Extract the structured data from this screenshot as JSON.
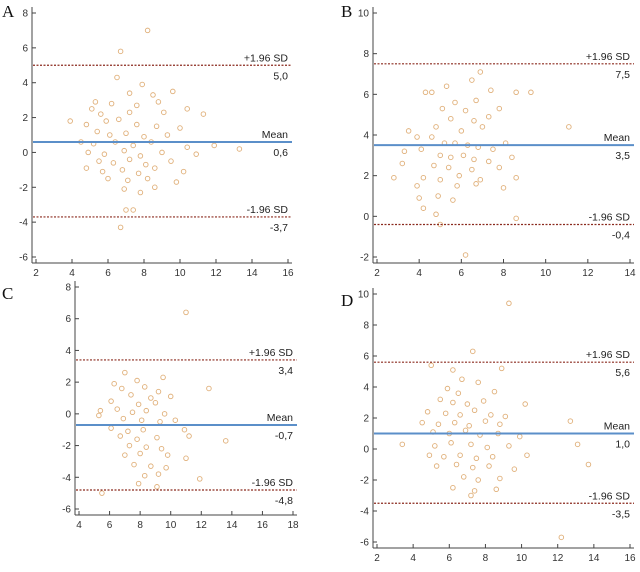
{
  "colors": {
    "mean_line": "#5b8fc9",
    "sd_line": "#8b2a1e",
    "point": "#e0b07a",
    "axis": "#444444",
    "text": "#222222"
  },
  "chart_data": [
    {
      "panel": "A",
      "type": "scatter",
      "xlim": [
        2,
        16
      ],
      "ylim": [
        -6,
        8
      ],
      "xticks": [
        2,
        4,
        6,
        8,
        10,
        12,
        14,
        16
      ],
      "yticks": [
        -6,
        -4,
        -2,
        0,
        2,
        4,
        6,
        8
      ],
      "reference_lines": [
        {
          "kind": "upper",
          "value": 5.0,
          "label": "+1.96 SD",
          "value_label": "5,0"
        },
        {
          "kind": "mean",
          "value": 0.6,
          "label": "Mean",
          "value_label": "0,6"
        },
        {
          "kind": "lower",
          "value": -3.7,
          "label": "-1.96 SD",
          "value_label": "-3,7"
        }
      ],
      "points": [
        [
          8.2,
          7.0
        ],
        [
          6.7,
          5.8
        ],
        [
          6.5,
          4.3
        ],
        [
          7.9,
          3.9
        ],
        [
          7.2,
          3.4
        ],
        [
          8.5,
          3.3
        ],
        [
          9.6,
          3.5
        ],
        [
          5.3,
          2.9
        ],
        [
          6.2,
          2.8
        ],
        [
          7.6,
          2.7
        ],
        [
          8.8,
          2.9
        ],
        [
          5.1,
          2.5
        ],
        [
          5.6,
          2.2
        ],
        [
          7.2,
          2.3
        ],
        [
          9.1,
          2.3
        ],
        [
          10.4,
          2.5
        ],
        [
          11.3,
          2.2
        ],
        [
          3.9,
          1.8
        ],
        [
          4.8,
          1.6
        ],
        [
          5.9,
          1.8
        ],
        [
          6.6,
          1.9
        ],
        [
          7.6,
          1.6
        ],
        [
          8.7,
          1.5
        ],
        [
          10.0,
          1.4
        ],
        [
          5.4,
          1.2
        ],
        [
          6.1,
          1.0
        ],
        [
          7.0,
          1.1
        ],
        [
          8.0,
          0.9
        ],
        [
          9.3,
          1.0
        ],
        [
          4.5,
          0.6
        ],
        [
          5.2,
          0.5
        ],
        [
          6.4,
          0.6
        ],
        [
          7.4,
          0.4
        ],
        [
          8.4,
          0.6
        ],
        [
          10.4,
          0.3
        ],
        [
          11.9,
          0.4
        ],
        [
          13.3,
          0.2
        ],
        [
          4.9,
          0.0
        ],
        [
          5.8,
          -0.1
        ],
        [
          6.9,
          0.1
        ],
        [
          7.8,
          -0.2
        ],
        [
          9.0,
          0.0
        ],
        [
          10.9,
          -0.1
        ],
        [
          5.5,
          -0.5
        ],
        [
          6.3,
          -0.6
        ],
        [
          7.2,
          -0.4
        ],
        [
          8.1,
          -0.7
        ],
        [
          9.5,
          -0.5
        ],
        [
          4.8,
          -0.9
        ],
        [
          5.7,
          -1.1
        ],
        [
          6.8,
          -1.0
        ],
        [
          7.7,
          -1.2
        ],
        [
          8.6,
          -0.9
        ],
        [
          10.2,
          -1.1
        ],
        [
          6.0,
          -1.5
        ],
        [
          7.1,
          -1.6
        ],
        [
          8.2,
          -1.5
        ],
        [
          9.8,
          -1.7
        ],
        [
          6.9,
          -2.1
        ],
        [
          7.8,
          -2.3
        ],
        [
          8.6,
          -2.0
        ],
        [
          7.0,
          -3.3
        ],
        [
          7.4,
          -3.3
        ],
        [
          6.7,
          -4.3
        ]
      ]
    },
    {
      "panel": "B",
      "type": "scatter",
      "xlim": [
        2,
        14
      ],
      "ylim": [
        -2,
        10
      ],
      "xticks": [
        2,
        4,
        6,
        8,
        10,
        12,
        14
      ],
      "yticks": [
        -2,
        0,
        2,
        4,
        6,
        8,
        10
      ],
      "reference_lines": [
        {
          "kind": "upper",
          "value": 7.5,
          "label": "+1.96 SD",
          "value_label": "7,5"
        },
        {
          "kind": "mean",
          "value": 3.5,
          "label": "Mean",
          "value_label": "3,5"
        },
        {
          "kind": "lower",
          "value": -0.4,
          "label": "-1.96 SD",
          "value_label": "-0,4"
        }
      ],
      "points": [
        [
          6.9,
          7.1
        ],
        [
          6.5,
          6.7
        ],
        [
          5.3,
          6.4
        ],
        [
          4.3,
          6.1
        ],
        [
          4.6,
          6.1
        ],
        [
          7.4,
          6.2
        ],
        [
          8.6,
          6.1
        ],
        [
          9.3,
          6.1
        ],
        [
          5.7,
          5.6
        ],
        [
          6.7,
          5.7
        ],
        [
          5.1,
          5.3
        ],
        [
          6.2,
          5.2
        ],
        [
          7.8,
          5.3
        ],
        [
          5.5,
          4.8
        ],
        [
          6.6,
          4.7
        ],
        [
          7.3,
          4.9
        ],
        [
          4.8,
          4.4
        ],
        [
          6.0,
          4.2
        ],
        [
          7.0,
          4.4
        ],
        [
          11.1,
          4.4
        ],
        [
          3.5,
          4.2
        ],
        [
          3.9,
          3.9
        ],
        [
          4.6,
          3.9
        ],
        [
          5.2,
          3.6
        ],
        [
          5.7,
          3.6
        ],
        [
          6.3,
          3.5
        ],
        [
          6.8,
          3.4
        ],
        [
          7.5,
          3.3
        ],
        [
          8.1,
          3.6
        ],
        [
          3.3,
          3.2
        ],
        [
          4.1,
          3.3
        ],
        [
          5.0,
          3.0
        ],
        [
          5.5,
          2.9
        ],
        [
          6.1,
          3.0
        ],
        [
          6.6,
          2.8
        ],
        [
          7.3,
          2.7
        ],
        [
          8.4,
          2.9
        ],
        [
          3.2,
          2.6
        ],
        [
          4.7,
          2.5
        ],
        [
          5.4,
          2.4
        ],
        [
          6.5,
          2.3
        ],
        [
          7.8,
          2.4
        ],
        [
          2.8,
          1.9
        ],
        [
          4.2,
          1.9
        ],
        [
          5.0,
          1.8
        ],
        [
          5.9,
          2.0
        ],
        [
          6.9,
          1.8
        ],
        [
          8.6,
          1.9
        ],
        [
          3.9,
          1.5
        ],
        [
          5.8,
          1.5
        ],
        [
          6.7,
          1.6
        ],
        [
          8.0,
          1.4
        ],
        [
          4.0,
          0.9
        ],
        [
          4.9,
          1.0
        ],
        [
          5.6,
          0.8
        ],
        [
          4.2,
          0.4
        ],
        [
          4.8,
          0.1
        ],
        [
          8.6,
          -0.1
        ],
        [
          5.0,
          -0.4
        ],
        [
          6.2,
          -1.9
        ]
      ]
    },
    {
      "panel": "C",
      "type": "scatter",
      "xlim": [
        4,
        18
      ],
      "ylim": [
        -6,
        8
      ],
      "xticks": [
        4,
        6,
        8,
        10,
        12,
        14,
        16,
        18
      ],
      "yticks": [
        -6,
        -4,
        -2,
        0,
        2,
        4,
        6,
        8
      ],
      "reference_lines": [
        {
          "kind": "upper",
          "value": 3.4,
          "label": "+1.96 SD",
          "value_label": "3,4"
        },
        {
          "kind": "mean",
          "value": -0.7,
          "label": "Mean",
          "value_label": "-0,7"
        },
        {
          "kind": "lower",
          "value": -4.8,
          "label": "-1.96 SD",
          "value_label": "-4,8"
        }
      ],
      "points": [
        [
          11.0,
          6.4
        ],
        [
          7.0,
          2.6
        ],
        [
          9.5,
          2.3
        ],
        [
          7.8,
          2.1
        ],
        [
          6.3,
          1.9
        ],
        [
          6.8,
          1.6
        ],
        [
          8.3,
          1.7
        ],
        [
          9.2,
          1.4
        ],
        [
          12.5,
          1.6
        ],
        [
          7.4,
          1.2
        ],
        [
          8.7,
          1.0
        ],
        [
          10.0,
          1.1
        ],
        [
          6.1,
          0.8
        ],
        [
          7.9,
          0.6
        ],
        [
          9.0,
          0.7
        ],
        [
          5.4,
          0.2
        ],
        [
          6.5,
          0.3
        ],
        [
          7.5,
          0.1
        ],
        [
          8.4,
          0.2
        ],
        [
          9.6,
          0.0
        ],
        [
          5.3,
          -0.1
        ],
        [
          6.9,
          -0.3
        ],
        [
          8.1,
          -0.4
        ],
        [
          9.3,
          -0.5
        ],
        [
          10.3,
          -0.4
        ],
        [
          6.1,
          -0.9
        ],
        [
          7.2,
          -1.1
        ],
        [
          8.2,
          -1.0
        ],
        [
          10.9,
          -1.0
        ],
        [
          6.7,
          -1.4
        ],
        [
          7.8,
          -1.6
        ],
        [
          9.1,
          -1.5
        ],
        [
          11.2,
          -1.4
        ],
        [
          13.6,
          -1.7
        ],
        [
          7.3,
          -2.0
        ],
        [
          8.4,
          -2.1
        ],
        [
          9.4,
          -2.2
        ],
        [
          7.0,
          -2.6
        ],
        [
          8.0,
          -2.5
        ],
        [
          9.8,
          -2.6
        ],
        [
          11.0,
          -2.8
        ],
        [
          7.6,
          -3.2
        ],
        [
          8.7,
          -3.3
        ],
        [
          9.7,
          -3.4
        ],
        [
          8.3,
          -3.9
        ],
        [
          9.2,
          -3.8
        ],
        [
          11.9,
          -4.1
        ],
        [
          7.9,
          -4.4
        ],
        [
          9.1,
          -4.6
        ],
        [
          5.5,
          -5.0
        ]
      ]
    },
    {
      "panel": "D",
      "type": "scatter",
      "xlim": [
        2,
        16
      ],
      "ylim": [
        -6,
        10
      ],
      "xticks": [
        2,
        4,
        6,
        8,
        10,
        12,
        14,
        16
      ],
      "yticks": [
        -6,
        -4,
        -2,
        0,
        2,
        4,
        6,
        8,
        10
      ],
      "reference_lines": [
        {
          "kind": "upper",
          "value": 5.6,
          "label": "+1.96 SD",
          "value_label": "5,6"
        },
        {
          "kind": "mean",
          "value": 1.0,
          "label": "Mean",
          "value_label": "1,0"
        },
        {
          "kind": "lower",
          "value": -3.5,
          "label": "-1.96 SD",
          "value_label": "-3,5"
        }
      ],
      "points": [
        [
          9.3,
          9.4
        ],
        [
          7.3,
          6.3
        ],
        [
          5.0,
          5.4
        ],
        [
          6.2,
          5.1
        ],
        [
          8.9,
          5.2
        ],
        [
          6.7,
          4.5
        ],
        [
          7.6,
          4.3
        ],
        [
          5.9,
          3.9
        ],
        [
          6.5,
          3.6
        ],
        [
          8.5,
          3.7
        ],
        [
          5.5,
          3.2
        ],
        [
          6.2,
          3.0
        ],
        [
          7.0,
          2.9
        ],
        [
          7.9,
          3.1
        ],
        [
          10.2,
          2.9
        ],
        [
          4.8,
          2.4
        ],
        [
          5.8,
          2.3
        ],
        [
          6.6,
          2.2
        ],
        [
          7.4,
          2.5
        ],
        [
          8.3,
          2.2
        ],
        [
          9.1,
          2.1
        ],
        [
          4.5,
          1.7
        ],
        [
          5.4,
          1.6
        ],
        [
          6.3,
          1.7
        ],
        [
          7.1,
          1.5
        ],
        [
          8.0,
          1.8
        ],
        [
          8.8,
          1.6
        ],
        [
          12.7,
          1.8
        ],
        [
          5.1,
          1.1
        ],
        [
          6.0,
          1.0
        ],
        [
          6.9,
          1.2
        ],
        [
          7.7,
          0.9
        ],
        [
          8.7,
          1.0
        ],
        [
          9.9,
          0.8
        ],
        [
          3.4,
          0.3
        ],
        [
          5.2,
          0.2
        ],
        [
          6.1,
          0.4
        ],
        [
          7.2,
          0.3
        ],
        [
          8.1,
          0.1
        ],
        [
          9.3,
          0.2
        ],
        [
          13.1,
          0.3
        ],
        [
          4.9,
          -0.4
        ],
        [
          5.7,
          -0.5
        ],
        [
          6.6,
          -0.4
        ],
        [
          7.5,
          -0.6
        ],
        [
          8.4,
          -0.5
        ],
        [
          10.3,
          -0.4
        ],
        [
          5.3,
          -1.1
        ],
        [
          6.4,
          -1.0
        ],
        [
          7.3,
          -1.2
        ],
        [
          8.2,
          -1.1
        ],
        [
          9.6,
          -1.3
        ],
        [
          13.7,
          -1.0
        ],
        [
          6.8,
          -1.8
        ],
        [
          7.6,
          -2.0
        ],
        [
          8.8,
          -1.9
        ],
        [
          6.2,
          -2.5
        ],
        [
          7.4,
          -2.7
        ],
        [
          8.6,
          -2.6
        ],
        [
          7.2,
          -3.0
        ],
        [
          12.2,
          -5.7
        ]
      ]
    }
  ]
}
